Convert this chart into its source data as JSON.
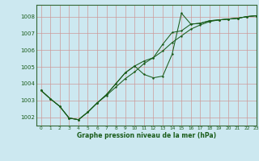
{
  "title": "Graphe pression niveau de la mer (hPa)",
  "background_color": "#cce8f0",
  "grid_color": "#cc9999",
  "line_color": "#1a5c1a",
  "xlim": [
    -0.5,
    23
  ],
  "ylim": [
    1001.5,
    1008.7
  ],
  "yticks": [
    1002,
    1003,
    1004,
    1005,
    1006,
    1007,
    1008
  ],
  "xticks": [
    0,
    1,
    2,
    3,
    4,
    5,
    6,
    7,
    8,
    9,
    10,
    11,
    12,
    13,
    14,
    15,
    16,
    17,
    18,
    19,
    20,
    21,
    22,
    23
  ],
  "hours": [
    0,
    1,
    2,
    3,
    4,
    5,
    6,
    7,
    8,
    9,
    10,
    11,
    12,
    13,
    14,
    15,
    16,
    17,
    18,
    19,
    20,
    21,
    22,
    23
  ],
  "line1": [
    1003.6,
    1003.1,
    1002.65,
    1001.95,
    1001.85,
    1002.3,
    1002.85,
    1003.3,
    1003.8,
    1004.3,
    1004.7,
    1005.2,
    1005.55,
    1005.95,
    1006.45,
    1006.85,
    1007.25,
    1007.5,
    1007.7,
    1007.8,
    1007.85,
    1007.9,
    1008.0,
    1008.05
  ],
  "line2": [
    1003.6,
    1003.1,
    1002.65,
    1001.95,
    1001.85,
    1002.3,
    1002.85,
    1003.35,
    1004.0,
    1004.65,
    1005.05,
    1005.35,
    1005.55,
    1006.35,
    1007.05,
    1007.15,
    1007.55,
    1007.6,
    1007.75,
    1007.8,
    1007.85,
    1007.9,
    1008.0,
    1008.05
  ],
  "line3": [
    1003.6,
    1003.1,
    1002.65,
    1001.95,
    1001.85,
    1002.3,
    1002.85,
    1003.35,
    1004.0,
    1004.65,
    1005.05,
    1004.55,
    1004.35,
    1004.45,
    1005.75,
    1008.2,
    1007.55,
    1007.6,
    1007.75,
    1007.8,
    1007.85,
    1007.9,
    1008.0,
    1008.05
  ]
}
